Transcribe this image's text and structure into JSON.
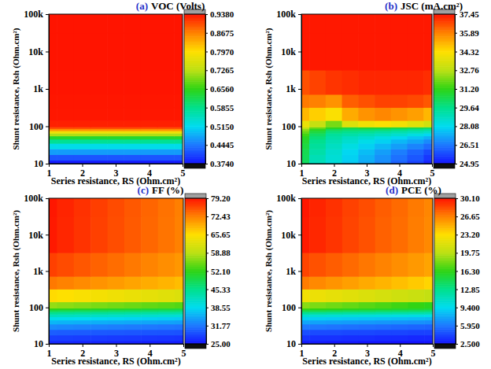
{
  "chart_data": [
    {
      "type": "heatmap",
      "panel_label": "(a)",
      "title": "VOC (Volts)",
      "x_label": "Series resistance, RS (Ohm.cm²)",
      "y_label": "Shunt resistance, Rsh (Ohm.cm²)",
      "log": "y",
      "xlim": [
        1,
        5
      ],
      "ylim": [
        10,
        100000
      ],
      "xticks": [
        1,
        2,
        3,
        4,
        5
      ],
      "yticks": [
        10,
        100,
        {
          "value": 1000,
          "label": "1k"
        },
        {
          "value": 10000,
          "label": "10k"
        },
        {
          "value": 100000,
          "label": "100k"
        }
      ],
      "x": [
        1,
        1.5,
        2,
        2.5,
        3,
        3.5,
        4,
        4.5,
        5
      ],
      "y": [
        10,
        15,
        20,
        30,
        40,
        50,
        60,
        70,
        80,
        90,
        100,
        200,
        500,
        1000,
        10000,
        100000
      ],
      "values": [
        [
          0.38,
          0.38,
          0.38,
          0.38,
          0.38,
          0.38,
          0.38,
          0.38,
          0.38
        ],
        [
          0.42,
          0.42,
          0.42,
          0.42,
          0.42,
          0.42,
          0.42,
          0.42,
          0.42
        ],
        [
          0.47,
          0.47,
          0.47,
          0.47,
          0.47,
          0.47,
          0.47,
          0.47,
          0.47
        ],
        [
          0.52,
          0.52,
          0.52,
          0.52,
          0.52,
          0.52,
          0.52,
          0.52,
          0.52
        ],
        [
          0.58,
          0.58,
          0.58,
          0.58,
          0.58,
          0.58,
          0.58,
          0.58,
          0.58
        ],
        [
          0.64,
          0.64,
          0.64,
          0.64,
          0.64,
          0.64,
          0.64,
          0.64,
          0.64
        ],
        [
          0.72,
          0.72,
          0.72,
          0.72,
          0.72,
          0.72,
          0.72,
          0.72,
          0.72
        ],
        [
          0.78,
          0.78,
          0.78,
          0.78,
          0.78,
          0.78,
          0.78,
          0.78,
          0.78
        ],
        [
          0.85,
          0.85,
          0.85,
          0.85,
          0.85,
          0.85,
          0.85,
          0.85,
          0.85
        ],
        [
          0.9,
          0.9,
          0.9,
          0.9,
          0.9,
          0.9,
          0.9,
          0.9,
          0.9
        ],
        [
          0.93,
          0.93,
          0.93,
          0.93,
          0.93,
          0.93,
          0.93,
          0.93,
          0.93
        ],
        [
          0.936,
          0.936,
          0.936,
          0.936,
          0.936,
          0.936,
          0.936,
          0.936,
          0.936
        ],
        [
          0.937,
          0.937,
          0.937,
          0.937,
          0.937,
          0.937,
          0.937,
          0.937,
          0.937
        ],
        [
          0.938,
          0.938,
          0.938,
          0.938,
          0.938,
          0.938,
          0.938,
          0.938,
          0.938
        ],
        [
          0.938,
          0.938,
          0.938,
          0.938,
          0.938,
          0.938,
          0.938,
          0.938,
          0.938
        ],
        [
          0.938,
          0.938,
          0.938,
          0.938,
          0.938,
          0.938,
          0.938,
          0.938,
          0.938
        ]
      ],
      "colorbar": {
        "range": [
          0.374,
          0.938
        ],
        "ticks": [
          {
            "value": 0.374,
            "label": "0.3740"
          },
          {
            "value": 0.4445,
            "label": "0.4445"
          },
          {
            "value": 0.515,
            "label": "0.5150"
          },
          {
            "value": 0.5855,
            "label": "0.5855"
          },
          {
            "value": 0.656,
            "label": "0.6560"
          },
          {
            "value": 0.7265,
            "label": "0.7265"
          },
          {
            "value": 0.797,
            "label": "0.7970"
          },
          {
            "value": 0.8675,
            "label": "0.8675"
          },
          {
            "value": 0.938,
            "label": "0.9380"
          }
        ]
      }
    },
    {
      "type": "heatmap",
      "panel_label": "(b)",
      "title": "JSC (mA.cm²)",
      "x_label": "Series resistance, RS (Ohm.cm²)",
      "y_label": "Shunt resistance, Rsh (Ohm.cm²)",
      "log": "y",
      "xlim": [
        1,
        5
      ],
      "ylim": [
        10,
        100000
      ],
      "xticks": [
        1,
        2,
        3,
        4,
        5
      ],
      "yticks": [
        10,
        100,
        {
          "value": 1000,
          "label": "1k"
        },
        {
          "value": 10000,
          "label": "10k"
        },
        {
          "value": 100000,
          "label": "100k"
        }
      ],
      "x": [
        1,
        1.5,
        2,
        2.5,
        3,
        3.5,
        4,
        4.5,
        5
      ],
      "y": [
        10,
        15,
        20,
        30,
        40,
        50,
        60,
        70,
        80,
        90,
        100,
        200,
        500,
        1000,
        10000,
        100000
      ],
      "values": [
        [
          30.2,
          28.9,
          28.4,
          27.8,
          27.3,
          26.8,
          26.2,
          25.7,
          25.2
        ],
        [
          30.3,
          29.0,
          28.5,
          27.9,
          27.4,
          26.9,
          26.4,
          26.0,
          25.5
        ],
        [
          30.4,
          29.2,
          28.6,
          28.0,
          27.6,
          27.1,
          26.6,
          26.2,
          25.8
        ],
        [
          30.6,
          29.4,
          28.8,
          28.3,
          27.9,
          27.5,
          27.1,
          26.7,
          26.3
        ],
        [
          30.8,
          29.6,
          29.0,
          28.6,
          28.2,
          27.9,
          27.5,
          27.2,
          26.8
        ],
        [
          31.0,
          29.9,
          29.2,
          28.8,
          28.6,
          28.3,
          28.0,
          27.7,
          27.4
        ],
        [
          31.4,
          30.2,
          29.4,
          29.2,
          29.0,
          28.8,
          28.6,
          28.3,
          28.0
        ],
        [
          31.8,
          30.6,
          29.8,
          29.6,
          29.5,
          29.3,
          29.1,
          28.9,
          28.7
        ],
        [
          32.2,
          31.0,
          30.2,
          30.0,
          30.0,
          29.9,
          29.7,
          29.5,
          29.3
        ],
        [
          32.8,
          31.8,
          31.0,
          30.6,
          30.8,
          30.8,
          30.6,
          30.4,
          30.2
        ],
        [
          33.8,
          33.0,
          32.0,
          33.5,
          34.0,
          34.2,
          34.0,
          33.6,
          33.2
        ],
        [
          35.0,
          34.6,
          34.2,
          35.2,
          35.6,
          35.8,
          35.6,
          35.4,
          35.0
        ],
        [
          36.0,
          35.9,
          35.6,
          36.4,
          36.6,
          36.8,
          36.8,
          36.7,
          36.5
        ],
        [
          36.6,
          36.8,
          37.0,
          37.1,
          37.2,
          37.2,
          37.2,
          37.2,
          37.1
        ],
        [
          37.4,
          37.4,
          37.4,
          37.4,
          37.4,
          37.4,
          37.4,
          37.4,
          37.4
        ],
        [
          37.4,
          37.4,
          37.4,
          37.4,
          37.4,
          37.4,
          37.4,
          37.4,
          37.4
        ]
      ],
      "colorbar": {
        "range": [
          24.95,
          37.45
        ],
        "ticks": [
          24.95,
          26.51,
          28.08,
          29.64,
          {
            "value": 31.2,
            "label": "31.20"
          },
          32.76,
          34.32,
          35.89,
          37.45
        ]
      }
    },
    {
      "type": "heatmap",
      "panel_label": "(c)",
      "title": "FF (%)",
      "x_label": "Series resistance, RS (Ohm.cm²)",
      "y_label": "Shunt resistance, Rsh (Ohm.cm²)",
      "log": "y",
      "xlim": [
        1,
        5
      ],
      "ylim": [
        10,
        100000
      ],
      "xticks": [
        1,
        2,
        3,
        4,
        5
      ],
      "yticks": [
        10,
        100,
        {
          "value": 1000,
          "label": "1k"
        },
        {
          "value": 10000,
          "label": "10k"
        },
        {
          "value": 100000,
          "label": "100k"
        }
      ],
      "x": [
        1,
        1.5,
        2,
        2.5,
        3,
        3.5,
        4,
        4.5,
        5
      ],
      "y": [
        10,
        15,
        20,
        30,
        40,
        50,
        60,
        70,
        80,
        90,
        100,
        200,
        500,
        1000,
        10000,
        100000
      ],
      "values": [
        [
          26.5,
          26.4,
          26.3,
          26.2,
          26.1,
          26.0,
          25.9,
          25.8,
          25.7
        ],
        [
          28.0,
          27.9,
          27.8,
          27.7,
          27.6,
          27.5,
          27.4,
          27.3,
          27.2
        ],
        [
          30.0,
          29.9,
          29.8,
          29.7,
          29.6,
          29.5,
          29.4,
          29.3,
          29.2
        ],
        [
          33.0,
          32.8,
          32.6,
          32.4,
          32.2,
          32.0,
          31.8,
          31.6,
          31.4
        ],
        [
          36.0,
          35.8,
          35.6,
          35.4,
          35.2,
          35.0,
          34.8,
          34.6,
          34.4
        ],
        [
          39.0,
          38.8,
          38.6,
          38.4,
          38.2,
          38.0,
          37.8,
          37.6,
          37.4
        ],
        [
          42.0,
          41.8,
          41.6,
          41.4,
          41.2,
          41.0,
          40.8,
          40.6,
          40.4
        ],
        [
          45.0,
          44.8,
          44.6,
          44.4,
          44.2,
          44.0,
          43.8,
          43.6,
          43.4
        ],
        [
          48.0,
          47.8,
          47.6,
          47.4,
          47.2,
          47.0,
          46.8,
          46.6,
          46.4
        ],
        [
          52.0,
          51.7,
          51.4,
          51.1,
          50.8,
          50.5,
          50.2,
          49.9,
          49.6
        ],
        [
          57.0,
          56.6,
          56.2,
          55.8,
          55.4,
          55.0,
          54.6,
          54.2,
          53.8
        ],
        [
          66.0,
          65.5,
          65.0,
          64.5,
          64.0,
          63.5,
          63.0,
          62.5,
          62.0
        ],
        [
          73.0,
          72.4,
          71.8,
          71.2,
          70.6,
          70.0,
          69.4,
          68.8,
          68.2
        ],
        [
          76.5,
          75.8,
          75.1,
          74.4,
          73.7,
          73.0,
          72.3,
          71.6,
          70.9
        ],
        [
          78.9,
          78.1,
          77.3,
          76.5,
          75.7,
          74.9,
          74.1,
          73.3,
          72.5
        ],
        [
          79.0,
          78.2,
          77.4,
          76.6,
          75.8,
          75.0,
          74.2,
          73.4,
          72.6
        ]
      ],
      "colorbar": {
        "range": [
          25,
          79.2
        ],
        "ticks": [
          {
            "value": 25,
            "label": "25.00"
          },
          31.77,
          38.55,
          45.33,
          {
            "value": 52.1,
            "label": "52.10"
          },
          58.88,
          65.65,
          72.43,
          {
            "value": 79.2,
            "label": "79.20"
          }
        ]
      }
    },
    {
      "type": "heatmap",
      "panel_label": "(d)",
      "title": "PCE (%)",
      "x_label": "Series resistance, RS (Ohm.cm²)",
      "y_label": "Shunt resistance, Rsh (Ohm.cm²)",
      "log": "y",
      "xlim": [
        1,
        5
      ],
      "ylim": [
        10,
        100000
      ],
      "xticks": [
        1,
        2,
        3,
        4,
        5
      ],
      "yticks": [
        10,
        100,
        {
          "value": 1000,
          "label": "1k"
        },
        {
          "value": 10000,
          "label": "10k"
        },
        {
          "value": 100000,
          "label": "100k"
        }
      ],
      "x": [
        1,
        1.5,
        2,
        2.5,
        3,
        3.5,
        4,
        4.5,
        5
      ],
      "y": [
        10,
        15,
        20,
        30,
        40,
        50,
        60,
        70,
        80,
        90,
        100,
        200,
        500,
        1000,
        10000,
        100000
      ],
      "values": [
        [
          2.8,
          2.8,
          2.7,
          2.7,
          2.6,
          2.6,
          2.5,
          2.5,
          2.5
        ],
        [
          3.6,
          3.5,
          3.5,
          3.4,
          3.4,
          3.3,
          3.3,
          3.2,
          3.2
        ],
        [
          4.5,
          4.4,
          4.4,
          4.3,
          4.3,
          4.2,
          4.2,
          4.1,
          4.1
        ],
        [
          6.0,
          5.9,
          5.8,
          5.7,
          5.6,
          5.5,
          5.4,
          5.3,
          5.2
        ],
        [
          7.5,
          7.4,
          7.3,
          7.2,
          7.1,
          7.0,
          6.9,
          6.8,
          6.7
        ],
        [
          9.0,
          8.9,
          8.8,
          8.7,
          8.6,
          8.5,
          8.4,
          8.3,
          8.2
        ],
        [
          10.5,
          10.4,
          10.3,
          10.2,
          10.1,
          10.0,
          9.9,
          9.8,
          9.7
        ],
        [
          12.5,
          12.4,
          12.3,
          12.2,
          12.1,
          12.0,
          11.9,
          11.8,
          11.7
        ],
        [
          14.5,
          14.4,
          14.2,
          14.1,
          14.0,
          13.8,
          13.7,
          13.6,
          13.4
        ],
        [
          16.5,
          16.3,
          16.2,
          16.0,
          15.8,
          15.7,
          15.5,
          15.4,
          15.2
        ],
        [
          18.5,
          18.2,
          17.9,
          17.6,
          17.3,
          17.0,
          16.7,
          16.4,
          16.1
        ],
        [
          22.5,
          22.2,
          21.9,
          21.6,
          21.3,
          21.0,
          20.7,
          20.4,
          20.1
        ],
        [
          26.8,
          26.4,
          26.0,
          25.6,
          25.2,
          24.8,
          24.4,
          24.0,
          23.6
        ],
        [
          28.6,
          28.2,
          27.8,
          27.4,
          27.0,
          26.6,
          26.2,
          25.8,
          25.4
        ],
        [
          29.9,
          29.5,
          29.1,
          28.6,
          28.2,
          27.7,
          27.3,
          26.8,
          26.4
        ],
        [
          30.0,
          29.6,
          29.2,
          28.7,
          28.3,
          27.8,
          27.4,
          26.9,
          26.5
        ]
      ],
      "colorbar": {
        "range": [
          2.5,
          30.1
        ],
        "ticks": [
          {
            "value": 2.5,
            "label": "2.500"
          },
          {
            "value": 5.95,
            "label": "5.950"
          },
          {
            "value": 9.4,
            "label": "9.400"
          },
          12.85,
          {
            "value": 16.3,
            "label": "16.30"
          },
          19.75,
          {
            "value": 23.2,
            "label": "23.20"
          },
          26.65,
          {
            "value": 30.1,
            "label": "30.10"
          }
        ]
      }
    }
  ]
}
